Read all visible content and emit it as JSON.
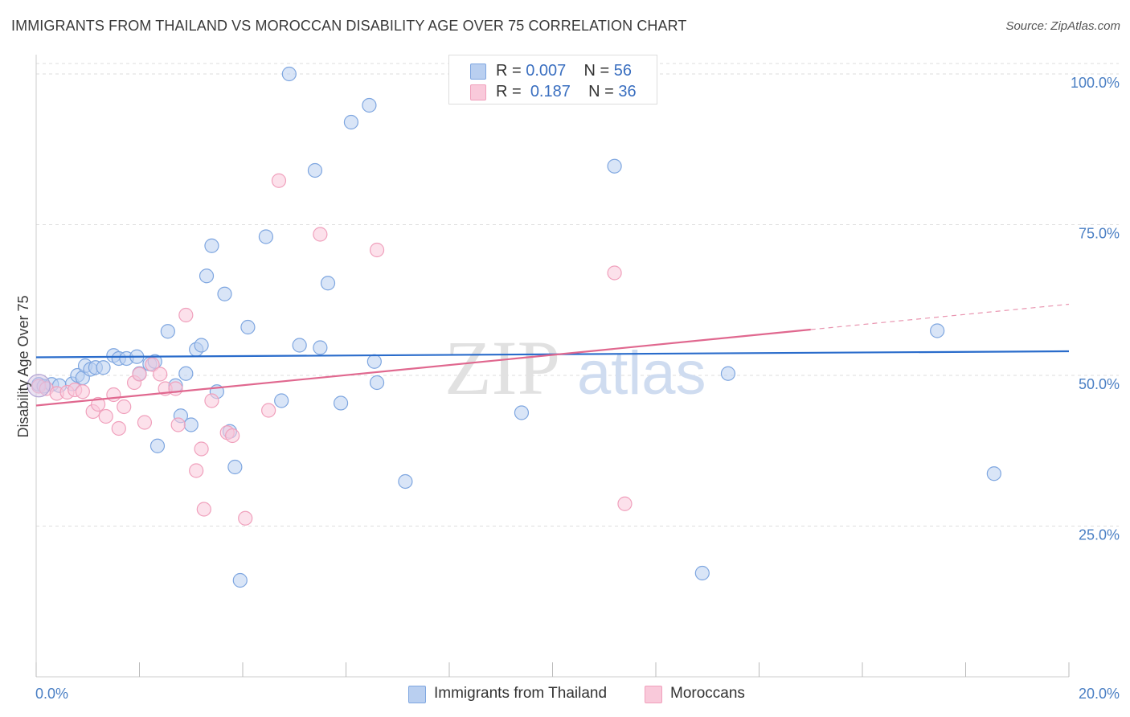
{
  "chart_data": {
    "type": "scatter",
    "title": "IMMIGRANTS FROM THAILAND VS MOROCCAN DISABILITY AGE OVER 75 CORRELATION CHART",
    "source": "Source: ZipAtlas.com",
    "ylabel": "Disability Age Over 75",
    "xlabel": "",
    "xlim": [
      0,
      20
    ],
    "ylim": [
      0,
      104
    ],
    "x_tick_labels": [
      "0.0%",
      "20.0%"
    ],
    "y_ticks": [
      25,
      50,
      75,
      100
    ],
    "y_tick_labels": [
      "25.0%",
      "50.0%",
      "75.0%",
      "100.0%"
    ],
    "grid": true,
    "watermark": {
      "zip": "ZIP",
      "atlas": "atlas"
    },
    "legend_stats": [
      {
        "r_label": "R =",
        "r_value": "0.007",
        "n_label": "N =",
        "n_value": "56"
      },
      {
        "r_label": "R =",
        "r_value": "0.187",
        "n_label": "N =",
        "n_value": "36"
      }
    ],
    "series": [
      {
        "name": "Immigrants from Thailand",
        "color": "#7ea6e0",
        "fill": "#b9cff0",
        "line_color": "#2a6ccb",
        "trend": {
          "x0": 0,
          "y0": 53.0,
          "x1": 20,
          "y1": 54.0,
          "solid_to": 20
        },
        "points": [
          [
            0.05,
            48.5
          ],
          [
            0.15,
            48.2
          ],
          [
            0.3,
            48.5
          ],
          [
            0.45,
            48.3
          ],
          [
            0.7,
            48.6
          ],
          [
            0.8,
            50.0
          ],
          [
            0.9,
            49.6
          ],
          [
            0.95,
            51.6
          ],
          [
            1.05,
            51.0
          ],
          [
            1.15,
            51.3
          ],
          [
            1.3,
            51.3
          ],
          [
            1.5,
            53.3
          ],
          [
            1.6,
            52.8
          ],
          [
            1.75,
            52.8
          ],
          [
            1.95,
            53.1
          ],
          [
            2.0,
            50.3
          ],
          [
            2.2,
            51.9
          ],
          [
            2.3,
            52.3
          ],
          [
            2.35,
            38.3
          ],
          [
            2.55,
            57.3
          ],
          [
            2.7,
            48.3
          ],
          [
            2.8,
            43.3
          ],
          [
            2.9,
            50.3
          ],
          [
            3.0,
            41.8
          ],
          [
            3.1,
            54.3
          ],
          [
            3.2,
            55.0
          ],
          [
            3.3,
            66.5
          ],
          [
            3.4,
            71.5
          ],
          [
            3.5,
            47.3
          ],
          [
            3.65,
            63.5
          ],
          [
            3.75,
            40.7
          ],
          [
            3.85,
            34.8
          ],
          [
            3.95,
            16.0
          ],
          [
            4.1,
            58.0
          ],
          [
            4.45,
            73.0
          ],
          [
            4.75,
            45.8
          ],
          [
            4.9,
            100.0
          ],
          [
            5.1,
            55.0
          ],
          [
            5.4,
            84.0
          ],
          [
            5.5,
            54.6
          ],
          [
            5.65,
            65.3
          ],
          [
            5.9,
            45.4
          ],
          [
            6.1,
            92.0
          ],
          [
            6.45,
            94.8
          ],
          [
            6.55,
            52.3
          ],
          [
            6.6,
            48.8
          ],
          [
            7.15,
            32.4
          ],
          [
            9.4,
            43.8
          ],
          [
            11.2,
            84.7
          ],
          [
            12.9,
            17.2
          ],
          [
            13.4,
            50.3
          ],
          [
            17.45,
            57.4
          ],
          [
            18.55,
            33.7
          ]
        ]
      },
      {
        "name": "Moroccans",
        "color": "#f0a0bc",
        "fill": "#f9c9da",
        "line_color": "#e0688f",
        "trend": {
          "x0": 0,
          "y0": 45.0,
          "x1": 20,
          "y1": 61.8,
          "solid_to": 15.0
        },
        "points": [
          [
            0.05,
            48.2
          ],
          [
            0.2,
            47.8
          ],
          [
            0.4,
            47.0
          ],
          [
            0.6,
            47.2
          ],
          [
            0.75,
            47.6
          ],
          [
            0.9,
            47.3
          ],
          [
            1.1,
            44.0
          ],
          [
            1.2,
            45.2
          ],
          [
            1.35,
            43.2
          ],
          [
            1.5,
            46.8
          ],
          [
            1.6,
            41.2
          ],
          [
            1.7,
            44.8
          ],
          [
            1.9,
            48.8
          ],
          [
            2.0,
            50.2
          ],
          [
            2.1,
            42.2
          ],
          [
            2.25,
            51.8
          ],
          [
            2.4,
            50.2
          ],
          [
            2.5,
            47.8
          ],
          [
            2.7,
            47.8
          ],
          [
            2.75,
            41.8
          ],
          [
            2.9,
            60.0
          ],
          [
            3.1,
            34.2
          ],
          [
            3.2,
            37.8
          ],
          [
            3.25,
            27.8
          ],
          [
            3.4,
            45.8
          ],
          [
            3.7,
            40.5
          ],
          [
            3.8,
            40.0
          ],
          [
            4.05,
            26.3
          ],
          [
            4.5,
            44.2
          ],
          [
            4.7,
            82.3
          ],
          [
            5.5,
            73.4
          ],
          [
            6.6,
            70.8
          ],
          [
            11.2,
            67.0
          ],
          [
            11.4,
            28.7
          ]
        ]
      }
    ]
  }
}
